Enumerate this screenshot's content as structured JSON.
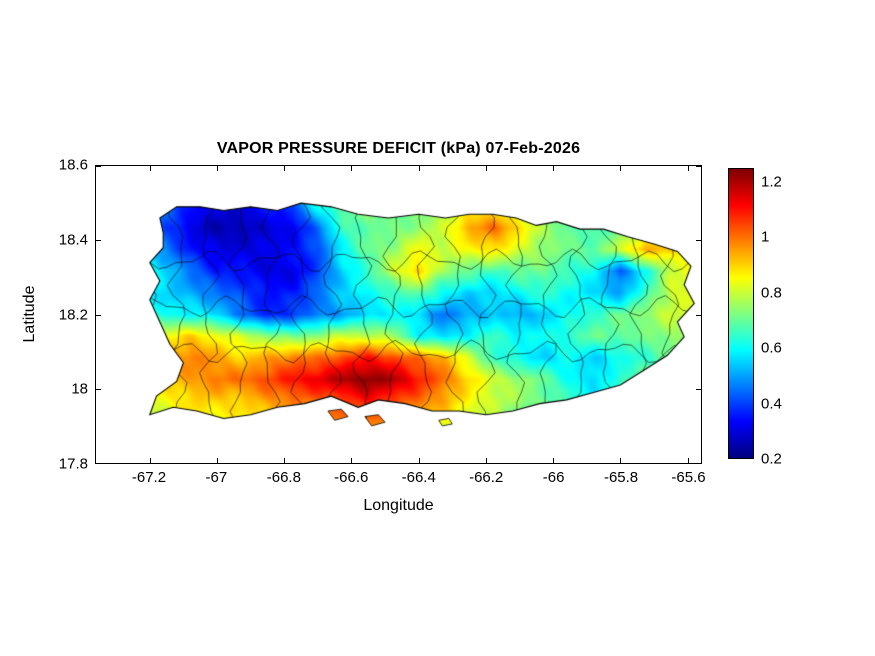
{
  "chart_data": {
    "type": "heatmap",
    "title": "VAPOR PRESSURE DEFICIT (kPa) 07-Feb-2026",
    "variable": "Vapor Pressure Deficit",
    "units": "kPa",
    "date": "07-Feb-2026",
    "region": "Puerto Rico",
    "xlabel": "Longitude",
    "ylabel": "Latitude",
    "xlim": [
      -67.36,
      -65.56
    ],
    "ylim": [
      17.8,
      18.6
    ],
    "xticks": [
      -67.2,
      -67,
      -66.8,
      -66.6,
      -66.4,
      -66.2,
      -66,
      -65.8,
      -65.6
    ],
    "xtick_labels": [
      "-67.2",
      "-67",
      "-66.8",
      "-66.6",
      "-66.4",
      "-66.2",
      "-66",
      "-65.8",
      "-65.6"
    ],
    "yticks": [
      18.6,
      18.4,
      18.2,
      18,
      17.8
    ],
    "ytick_labels": [
      "18.6",
      "18.4",
      "18.2",
      "18",
      "17.8"
    ],
    "colormap": "jet",
    "clim": [
      0.2,
      1.25
    ],
    "colorbar_tick_values": [
      1.2,
      1,
      0.8,
      0.6,
      0.4,
      0.2
    ],
    "colorbar_tick_labels": [
      "1.2",
      "1",
      "0.8",
      "0.6",
      "0.4",
      "0.2"
    ],
    "grid": {
      "lon_start": -67.3,
      "lon_step": 0.075,
      "lat_start": 18.55,
      "lat_step": -0.0583333,
      "values": [
        [
          0.65,
          0.6,
          0.55,
          0.5,
          0.45,
          0.45,
          0.5,
          0.55,
          0.65,
          0.7,
          0.75,
          0.75,
          0.75,
          0.75,
          0.8,
          0.8,
          0.75,
          0.7,
          0.7,
          0.7,
          0.7,
          0.75,
          0.8,
          0.8,
          0.8
        ],
        [
          0.65,
          0.55,
          0.45,
          0.35,
          0.3,
          0.3,
          0.35,
          0.4,
          0.6,
          0.7,
          0.75,
          0.7,
          0.7,
          0.75,
          0.85,
          0.85,
          0.8,
          0.7,
          0.7,
          0.7,
          0.7,
          0.75,
          0.85,
          0.85,
          0.85
        ],
        [
          0.65,
          0.55,
          0.4,
          0.3,
          0.25,
          0.25,
          0.3,
          0.3,
          0.45,
          0.65,
          0.7,
          0.7,
          0.75,
          0.8,
          0.95,
          1.0,
          0.9,
          0.75,
          0.7,
          0.65,
          0.7,
          0.8,
          0.9,
          0.85,
          0.8
        ],
        [
          0.6,
          0.6,
          0.45,
          0.35,
          0.3,
          0.3,
          0.3,
          0.35,
          0.4,
          0.6,
          0.7,
          0.75,
          0.85,
          0.8,
          0.85,
          0.9,
          0.8,
          0.75,
          0.7,
          0.7,
          0.8,
          0.95,
          0.9,
          0.8,
          0.75
        ],
        [
          0.7,
          0.65,
          0.55,
          0.45,
          0.35,
          0.35,
          0.3,
          0.3,
          0.4,
          0.55,
          0.65,
          0.8,
          0.9,
          0.75,
          0.7,
          0.65,
          0.7,
          0.7,
          0.65,
          0.6,
          0.42,
          0.6,
          0.8,
          0.85,
          0.8
        ],
        [
          0.7,
          0.6,
          0.55,
          0.5,
          0.45,
          0.4,
          0.35,
          0.35,
          0.45,
          0.55,
          0.6,
          0.65,
          0.7,
          0.6,
          0.55,
          0.55,
          0.6,
          0.65,
          0.6,
          0.55,
          0.5,
          0.65,
          0.8,
          0.85,
          0.8
        ],
        [
          0.7,
          0.65,
          0.6,
          0.6,
          0.55,
          0.45,
          0.35,
          0.4,
          0.45,
          0.5,
          0.55,
          0.6,
          0.55,
          0.45,
          0.5,
          0.55,
          0.5,
          0.55,
          0.6,
          0.65,
          0.7,
          0.75,
          0.8,
          0.8,
          0.75
        ],
        [
          0.8,
          0.8,
          0.85,
          0.9,
          0.85,
          0.8,
          0.75,
          0.7,
          0.75,
          0.8,
          0.8,
          0.75,
          0.6,
          0.55,
          0.6,
          0.65,
          0.6,
          0.6,
          0.65,
          0.7,
          0.7,
          0.7,
          0.75,
          0.75,
          0.7
        ],
        [
          0.85,
          0.9,
          0.95,
          1.0,
          0.95,
          0.9,
          0.95,
          1.0,
          1.0,
          1.05,
          1.1,
          1.05,
          1.0,
          0.95,
          0.8,
          0.65,
          0.6,
          0.55,
          0.6,
          0.55,
          0.6,
          0.65,
          0.7,
          0.7,
          0.65
        ],
        [
          0.8,
          0.85,
          0.9,
          0.95,
          1.0,
          1.0,
          1.05,
          1.1,
          1.15,
          1.2,
          1.25,
          1.2,
          1.1,
          1.0,
          0.9,
          0.8,
          0.75,
          0.7,
          0.6,
          0.55,
          0.65,
          0.7,
          0.7,
          0.65,
          0.6
        ],
        [
          0.75,
          0.8,
          0.85,
          0.9,
          0.9,
          0.9,
          0.95,
          1.0,
          1.0,
          1.05,
          1.1,
          1.05,
          1.0,
          0.95,
          0.85,
          0.8,
          0.75,
          0.7,
          0.65,
          0.6,
          0.65,
          0.7,
          0.65,
          0.6,
          0.6
        ],
        [
          0.7,
          0.75,
          0.8,
          0.85,
          0.85,
          0.85,
          0.9,
          0.9,
          0.95,
          1.0,
          1.0,
          0.95,
          0.9,
          0.85,
          0.8,
          0.75,
          0.7,
          0.65,
          0.6,
          0.6,
          0.6,
          0.65,
          0.6,
          0.6,
          0.55
        ],
        [
          0.7,
          0.7,
          0.75,
          0.8,
          0.8,
          0.8,
          0.85,
          0.85,
          0.9,
          0.9,
          0.95,
          0.9,
          0.85,
          0.8,
          0.75,
          0.7,
          0.65,
          0.6,
          0.6,
          0.55,
          0.6,
          0.6,
          0.55,
          0.55,
          0.5
        ]
      ]
    },
    "island_outline": [
      [
        -67.16,
        18.42
      ],
      [
        -67.17,
        18.46
      ],
      [
        -67.12,
        18.49
      ],
      [
        -67.05,
        18.49
      ],
      [
        -66.98,
        18.48
      ],
      [
        -66.9,
        18.49
      ],
      [
        -66.82,
        18.48
      ],
      [
        -66.75,
        18.5
      ],
      [
        -66.66,
        18.49
      ],
      [
        -66.58,
        18.47
      ],
      [
        -66.49,
        18.46
      ],
      [
        -66.4,
        18.47
      ],
      [
        -66.32,
        18.46
      ],
      [
        -66.25,
        18.47
      ],
      [
        -66.18,
        18.47
      ],
      [
        -66.11,
        18.46
      ],
      [
        -66.05,
        18.44
      ],
      [
        -65.99,
        18.45
      ],
      [
        -65.92,
        18.43
      ],
      [
        -65.85,
        18.43
      ],
      [
        -65.78,
        18.41
      ],
      [
        -65.7,
        18.39
      ],
      [
        -65.63,
        18.37
      ],
      [
        -65.59,
        18.33
      ],
      [
        -65.61,
        18.28
      ],
      [
        -65.58,
        18.23
      ],
      [
        -65.63,
        18.18
      ],
      [
        -65.61,
        18.14
      ],
      [
        -65.66,
        18.09
      ],
      [
        -65.73,
        18.05
      ],
      [
        -65.8,
        18.01
      ],
      [
        -65.88,
        17.99
      ],
      [
        -65.96,
        17.97
      ],
      [
        -66.04,
        17.96
      ],
      [
        -66.12,
        17.94
      ],
      [
        -66.2,
        17.93
      ],
      [
        -66.28,
        17.94
      ],
      [
        -66.36,
        17.94
      ],
      [
        -66.44,
        17.96
      ],
      [
        -66.52,
        17.97
      ],
      [
        -66.58,
        17.95
      ],
      [
        -66.66,
        17.98
      ],
      [
        -66.74,
        17.96
      ],
      [
        -66.82,
        17.95
      ],
      [
        -66.9,
        17.93
      ],
      [
        -66.98,
        17.92
      ],
      [
        -67.06,
        17.94
      ],
      [
        -67.13,
        17.95
      ],
      [
        -67.2,
        17.93
      ],
      [
        -67.18,
        17.98
      ],
      [
        -67.12,
        18.02
      ],
      [
        -67.1,
        18.07
      ],
      [
        -67.14,
        18.12
      ],
      [
        -67.17,
        18.18
      ],
      [
        -67.2,
        18.24
      ],
      [
        -67.17,
        18.29
      ],
      [
        -67.2,
        18.34
      ],
      [
        -67.16,
        18.38
      ]
    ],
    "islets": [
      [
        [
          -66.67,
          17.94
        ],
        [
          -66.63,
          17.945
        ],
        [
          -66.61,
          17.925
        ],
        [
          -66.65,
          17.915
        ]
      ],
      [
        [
          -66.56,
          17.925
        ],
        [
          -66.52,
          17.93
        ],
        [
          -66.5,
          17.91
        ],
        [
          -66.54,
          17.9
        ]
      ],
      [
        [
          -66.34,
          17.915
        ],
        [
          -66.31,
          17.92
        ],
        [
          -66.3,
          17.905
        ],
        [
          -66.33,
          17.9
        ]
      ]
    ],
    "boundaries_note": "municipality boundaries shown as thin black lines",
    "colors": {
      "axis": "#000000",
      "background": "#ffffff"
    }
  }
}
